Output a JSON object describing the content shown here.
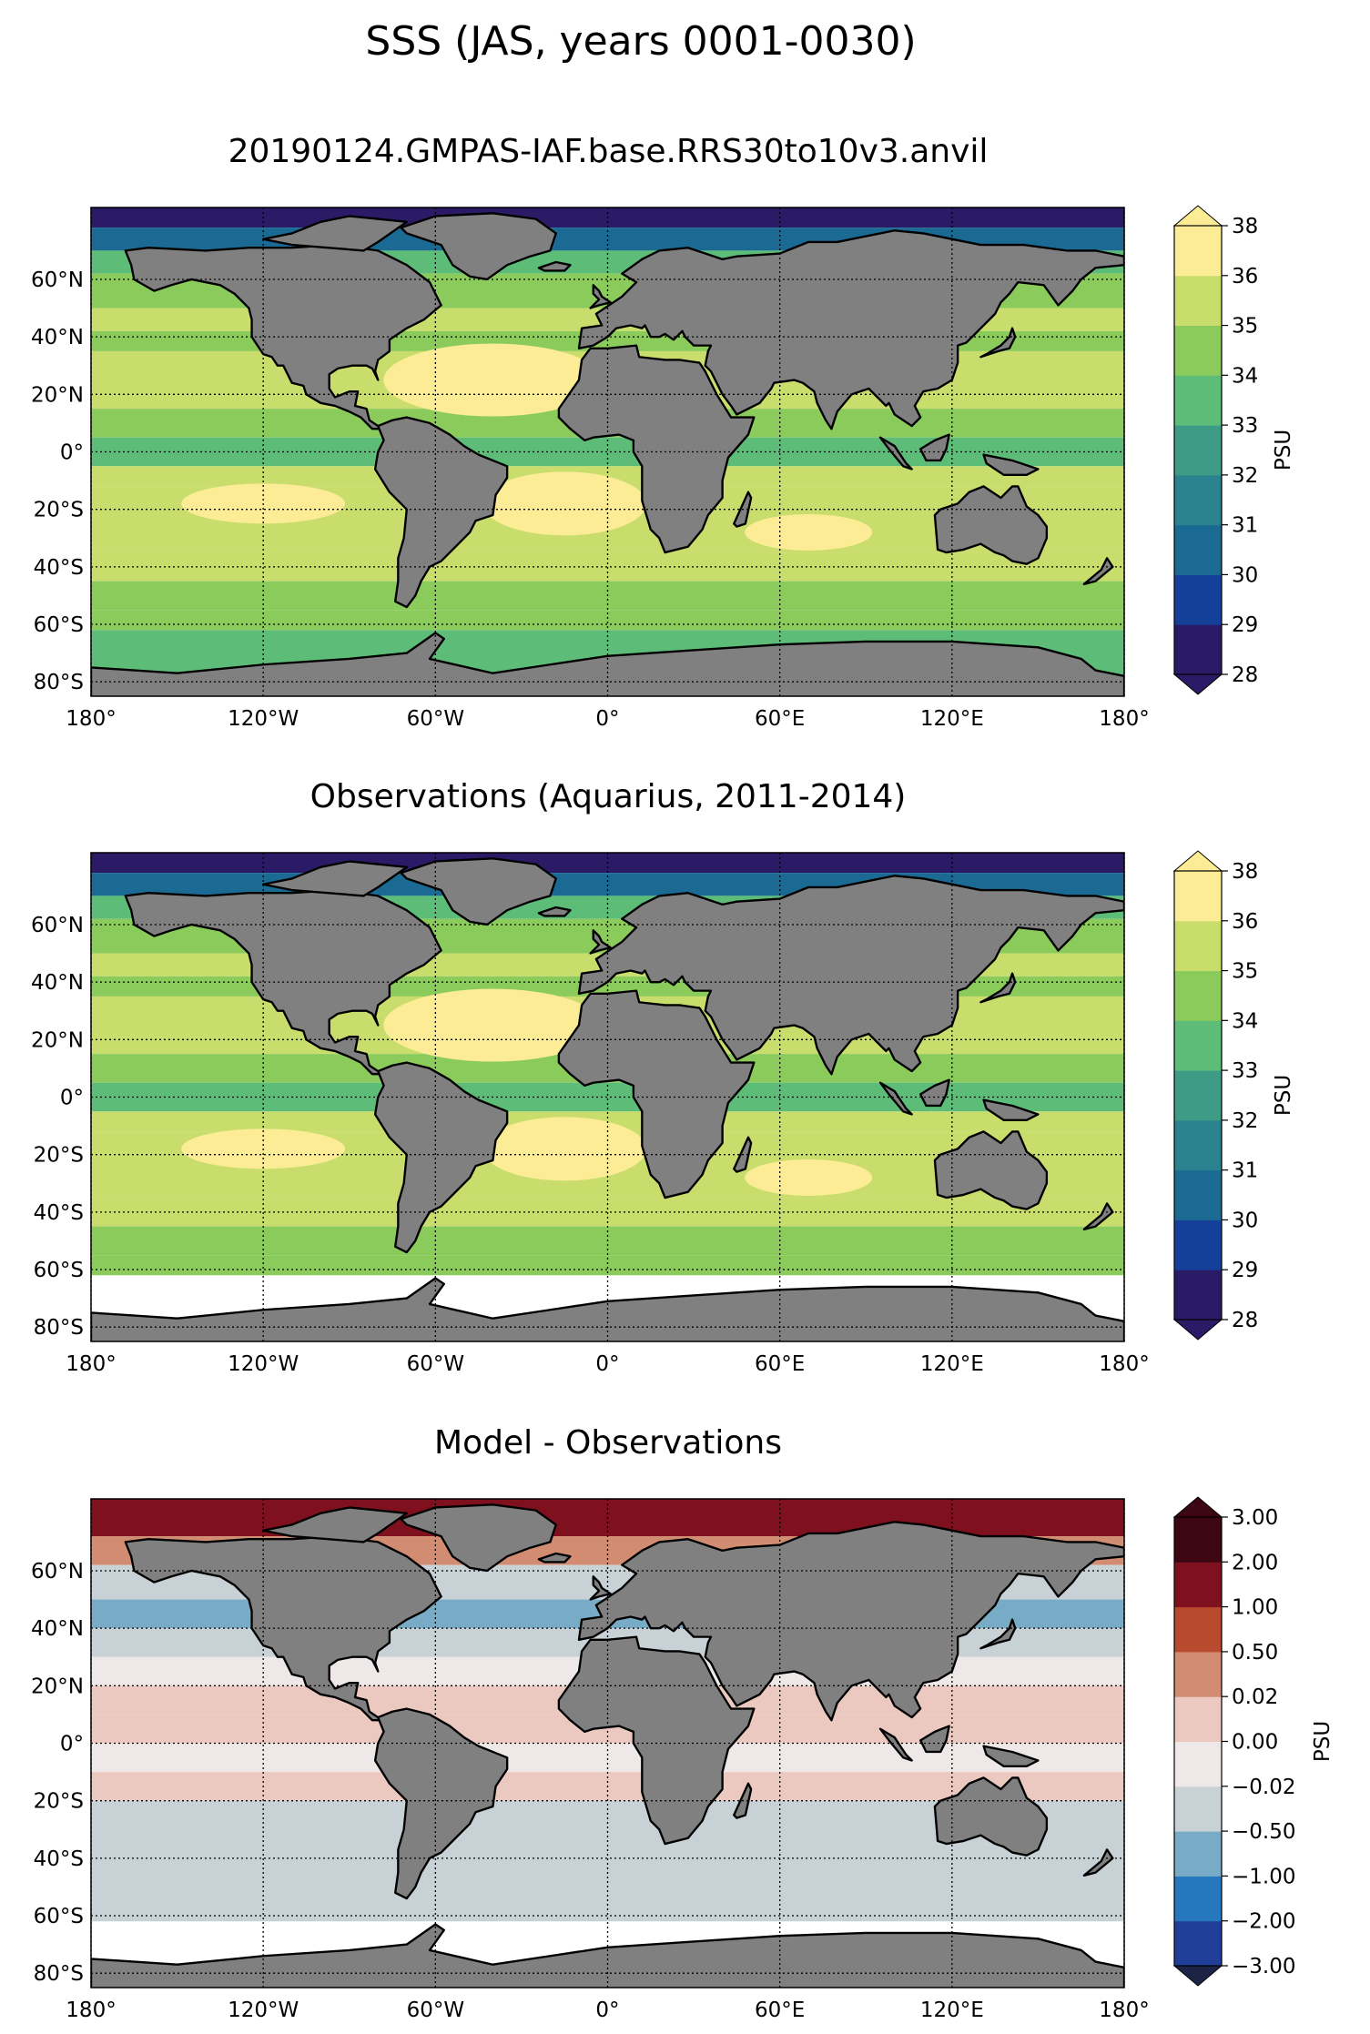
{
  "figure": {
    "suptitle": "SSS (JAS, years 0001-0030)"
  },
  "panels": [
    {
      "title": "20190124.GMPAS-IAF.base.RRS30to10v3.anvil",
      "kind": "model",
      "colorbar": {
        "label": "PSU",
        "ticks": [
          "28",
          "29",
          "30",
          "31",
          "32",
          "33",
          "34",
          "35",
          "36",
          "38"
        ],
        "colors": [
          "#2b1b67",
          "#15409a",
          "#1a6a93",
          "#2b828f",
          "#3e9c86",
          "#5cbc78",
          "#8acb5c",
          "#c9dd6d",
          "#fbec95"
        ],
        "under_color": "#2b1b67",
        "over_color": "#fbec95",
        "extend": "both"
      }
    },
    {
      "title": "Observations (Aquarius, 2011-2014)",
      "kind": "obs",
      "colorbar": {
        "label": "PSU",
        "ticks": [
          "28",
          "29",
          "30",
          "31",
          "32",
          "33",
          "34",
          "35",
          "36",
          "38"
        ],
        "colors": [
          "#2b1b67",
          "#15409a",
          "#1a6a93",
          "#2b828f",
          "#3e9c86",
          "#5cbc78",
          "#8acb5c",
          "#c9dd6d",
          "#fbec95"
        ],
        "under_color": "#2b1b67",
        "over_color": "#fbec95",
        "extend": "both"
      }
    },
    {
      "title": "Model - Observations",
      "kind": "diff",
      "colorbar": {
        "label": "PSU",
        "ticks": [
          "3.00",
          "2.00",
          "1.00",
          "0.50",
          "0.02",
          "0.00",
          "−0.02",
          "−0.50",
          "−1.00",
          "−2.00",
          "−3.00"
        ],
        "colors": [
          "#213e9a",
          "#2578bd",
          "#78abc5",
          "#c7d1d6",
          "#efe8e8",
          "#ecc9c0",
          "#d18c72",
          "#b84a2e",
          "#7f101d",
          "#3d0613"
        ],
        "under_color": "#1b2445",
        "over_color": "#3d0613",
        "extend": "both"
      }
    }
  ],
  "map": {
    "land_color": "#808080",
    "no_data_color": "#ffffff",
    "projection": "PlateCarree",
    "lon_range": [
      -180,
      180
    ],
    "lat_range": [
      -85,
      85
    ],
    "lon_ticks": [
      "180°",
      "120°W",
      "60°W",
      "0°",
      "60°E",
      "120°E",
      "180°"
    ],
    "lat_ticks": [
      "60°N",
      "40°N",
      "20°N",
      "0°",
      "20°S",
      "40°S",
      "60°S",
      "80°S"
    ],
    "gridlines": "dotted"
  }
}
